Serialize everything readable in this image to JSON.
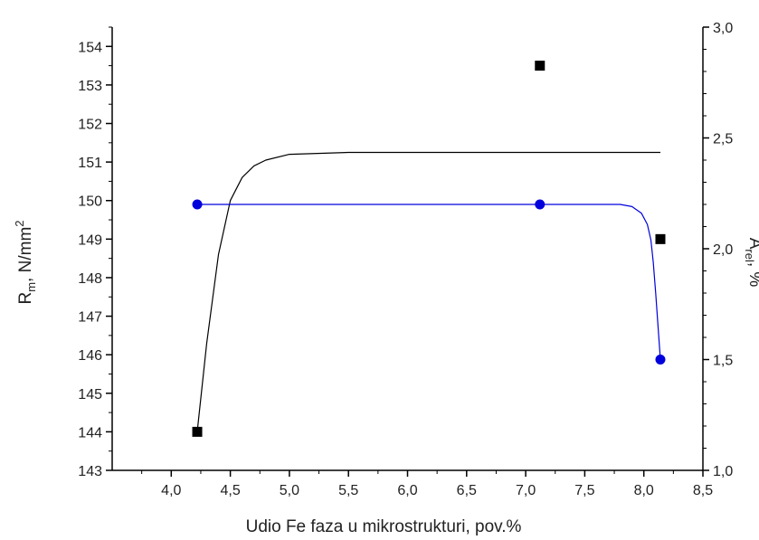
{
  "chart_data": {
    "type": "scatter",
    "xlabel": "Udio Fe faza u mikrostrukturi, pov.%",
    "ylabel_left": {
      "base": "R",
      "sub": "m",
      "rest": ", N/mm",
      "sup": "2"
    },
    "ylabel_right": {
      "base": "A",
      "sub": "rel",
      "rest": ", %"
    },
    "xlim": [
      3.5,
      8.5
    ],
    "ylim_left": [
      143,
      154.5
    ],
    "ylim_right": [
      1.0,
      3.0
    ],
    "x_ticks": [
      4.0,
      4.5,
      5.0,
      5.5,
      6.0,
      6.5,
      7.0,
      7.5,
      8.0,
      8.5
    ],
    "x_tick_labels": [
      "4,0",
      "4,5",
      "5,0",
      "5,5",
      "6,0",
      "6,5",
      "7,0",
      "7,5",
      "8,0",
      "8,5"
    ],
    "y_left_ticks": [
      143,
      144,
      145,
      146,
      147,
      148,
      149,
      150,
      151,
      152,
      153,
      154
    ],
    "y_left_tick_labels": [
      "143",
      "144",
      "145",
      "146",
      "147",
      "148",
      "149",
      "150",
      "151",
      "152",
      "153",
      "154"
    ],
    "y_right_ticks": [
      1.0,
      1.5,
      2.0,
      2.5,
      3.0
    ],
    "y_right_tick_labels": [
      "1,0",
      "1,5",
      "2,0",
      "2,5",
      "3,0"
    ],
    "grid": false,
    "series": [
      {
        "axis": "left",
        "marker": "square",
        "color": "#000000",
        "points": [
          [
            4.22,
            144.0
          ],
          [
            7.12,
            153.5
          ],
          [
            8.14,
            149.0
          ]
        ],
        "fit": [
          [
            4.22,
            144.0
          ],
          [
            4.3,
            146.3
          ],
          [
            4.4,
            148.6
          ],
          [
            4.5,
            150.0
          ],
          [
            4.6,
            150.6
          ],
          [
            4.7,
            150.9
          ],
          [
            4.8,
            151.05
          ],
          [
            5.0,
            151.2
          ],
          [
            5.5,
            151.25
          ],
          [
            6.0,
            151.25
          ],
          [
            7.0,
            151.25
          ],
          [
            8.14,
            151.25
          ]
        ]
      },
      {
        "axis": "right",
        "marker": "circle",
        "color": "#0000dd",
        "points": [
          [
            4.22,
            2.2
          ],
          [
            7.12,
            2.2
          ],
          [
            8.14,
            1.5
          ]
        ],
        "fit": [
          [
            4.22,
            2.2
          ],
          [
            7.12,
            2.2
          ],
          [
            7.8,
            2.2
          ],
          [
            7.9,
            2.19
          ],
          [
            7.98,
            2.16
          ],
          [
            8.03,
            2.11
          ],
          [
            8.06,
            2.04
          ],
          [
            8.08,
            1.94
          ],
          [
            8.1,
            1.8
          ],
          [
            8.12,
            1.65
          ],
          [
            8.14,
            1.5
          ]
        ]
      }
    ]
  }
}
